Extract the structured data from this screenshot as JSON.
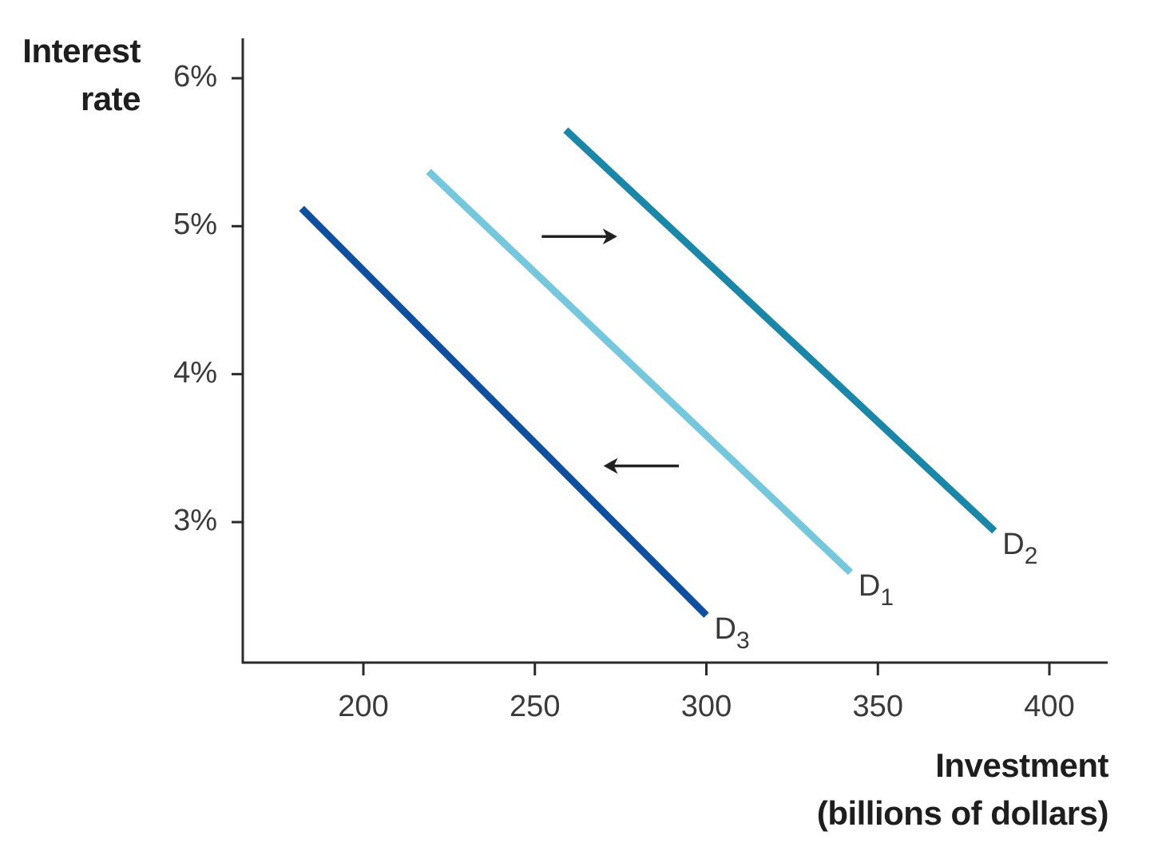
{
  "chart_data": {
    "type": "line",
    "title": "",
    "xlabel": "Investment (billions of dollars)",
    "xlabel_lines": [
      "Investment",
      "(billions of dollars)"
    ],
    "ylabel": "Interest rate",
    "ylabel_lines": [
      "Interest",
      "rate"
    ],
    "xlim": [
      165,
      418
    ],
    "ylim": [
      2.06,
      6.27
    ],
    "x_ticks": [
      200,
      250,
      300,
      350,
      400
    ],
    "x_tick_labels": [
      "200",
      "250",
      "300",
      "350",
      "400"
    ],
    "y_ticks": [
      3,
      4,
      5,
      6
    ],
    "y_tick_labels": [
      "3%",
      "4%",
      "5%",
      "6%"
    ],
    "grid": false,
    "legend": "none (direct curve labels)",
    "series": [
      {
        "name": "D1",
        "label_base": "D",
        "label_sub": "1",
        "color": "#74c7dc",
        "points": [
          {
            "x": 219,
            "y": 5.37
          },
          {
            "x": 342,
            "y": 2.66
          }
        ]
      },
      {
        "name": "D2",
        "label_base": "D",
        "label_sub": "2",
        "color": "#1b87a8",
        "points": [
          {
            "x": 259,
            "y": 5.65
          },
          {
            "x": 384,
            "y": 2.94
          }
        ]
      },
      {
        "name": "D3",
        "label_base": "D",
        "label_sub": "3",
        "color": "#0f4fa0",
        "points": [
          {
            "x": 182,
            "y": 5.12
          },
          {
            "x": 300,
            "y": 2.37
          }
        ]
      }
    ],
    "annotations": [
      {
        "type": "arrow",
        "direction": "right",
        "meaning": "shift from D1 to D2",
        "from": {
          "x": 252,
          "y": 4.93
        },
        "to": {
          "x": 274,
          "y": 4.93
        }
      },
      {
        "type": "arrow",
        "direction": "left",
        "meaning": "shift from D1 to D3",
        "from": {
          "x": 292,
          "y": 3.38
        },
        "to": {
          "x": 270,
          "y": 3.38
        }
      }
    ]
  }
}
